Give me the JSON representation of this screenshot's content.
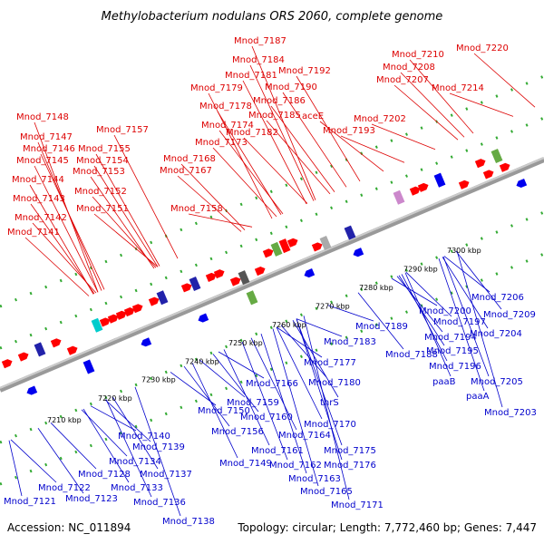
{
  "title": "Methylobacterium nodulans ORS 2060, complete genome",
  "footer": {
    "accession": "Accession: NC_011894",
    "summary": "Topology: circular; Length: 7,772,460 bp; Genes: 7,447"
  },
  "colors": {
    "top_label": "#dd0000",
    "bottom_label": "#0000cc",
    "backbone": "#888888",
    "tick": "#33aa33"
  },
  "ticks": [
    "7210 kbp",
    "7220 kbp",
    "7230 kbp",
    "7240 kbp",
    "7250 kbp",
    "7260 kbp",
    "7270 kbp",
    "7280 kbp",
    "7290 kbp",
    "7300 kbp"
  ],
  "top_labels": [
    "Mnod_7187",
    "Mnod_7184",
    "Mnod_7192",
    "Mnod_7220",
    "Mnod_7210",
    "Mnod_7208",
    "Mnod_7181",
    "Mnod_7190",
    "Mnod_7207",
    "Mnod_7214",
    "Mnod_7179",
    "Mnod_7186",
    "Mnod_7178",
    "Mnod_7185",
    "aceE",
    "Mnod_7202",
    "Mnod_7148",
    "Mnod_7157",
    "Mnod_7174",
    "Mnod_7182",
    "Mnod_7193",
    "Mnod_7147",
    "Mnod_7155",
    "Mnod_7173",
    "Mnod_7146",
    "Mnod_7154",
    "Mnod_7168",
    "Mnod_7145",
    "Mnod_7153",
    "Mnod_7167",
    "Mnod_7144",
    "Mnod_7152",
    "Mnod_7143",
    "Mnod_7151",
    "Mnod_7158",
    "Mnod_7142",
    "Mnod_7141"
  ],
  "bottom_labels": [
    "Mnod_7206",
    "Mnod_7209",
    "Mnod_7189",
    "Mnod_7200",
    "Mnod_7197",
    "Mnod_7204",
    "Mnod_7183",
    "Mnod_7194",
    "Mnod_7188",
    "Mnod_7195",
    "Mnod_7177",
    "Mnod_7196",
    "Mnod_7205",
    "Mnod_7180",
    "paaB",
    "Mnod_7166",
    "paaA",
    "Mnod_7150",
    "Mnod_7159",
    "thrS",
    "Mnod_7203",
    "Mnod_7160",
    "Mnod_7170",
    "Mnod_7156",
    "Mnod_7164",
    "Mnod_7140",
    "Mnod_7161",
    "Mnod_7175",
    "Mnod_7139",
    "Mnod_7149",
    "Mnod_7134",
    "Mnod_7162",
    "Mnod_7176",
    "Mnod_7128",
    "Mnod_7137",
    "Mnod_7163",
    "Mnod_7122",
    "Mnod_7133",
    "Mnod_7165",
    "Mnod_7121",
    "Mnod_7123",
    "Mnod_7136",
    "Mnod_7171",
    "Mnod_7138"
  ]
}
